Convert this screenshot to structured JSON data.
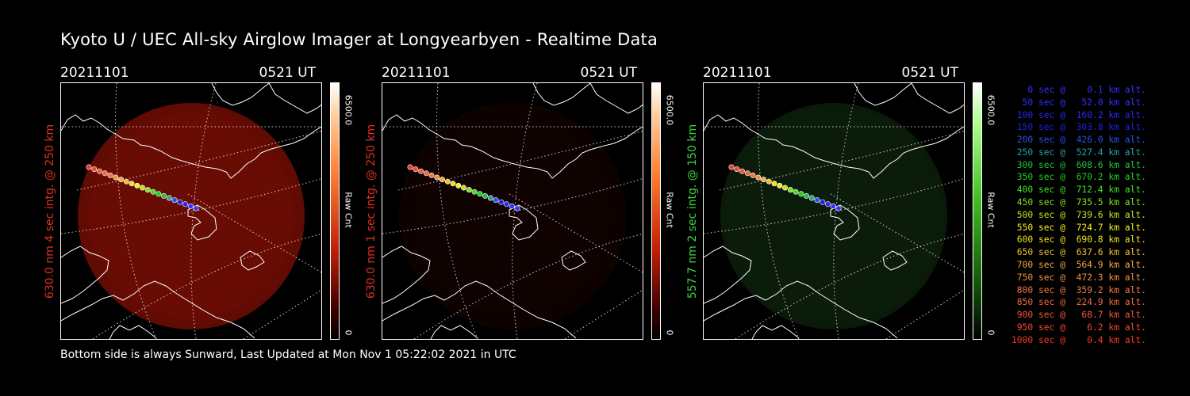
{
  "title": "Kyoto U / UEC All-sky Airglow Imager at Longyearbyen - Realtime Data",
  "footer": "Bottom side is always Sunward, Last Updated at Mon Nov  1 05:22:02 2021 in UTC",
  "panels": [
    {
      "date": "20211101",
      "time": "0521 UT",
      "side_label": "630.0 nm 4 sec intg. @ 250 km",
      "side_color": "#e03020",
      "cbar_max": "6500.0",
      "cbar_unit": "Raw Cnt",
      "cbar_min": "0",
      "scheme": "red",
      "glow_color": "#7a0e04",
      "brightness": 0.85
    },
    {
      "date": "20211101",
      "time": "0521 UT",
      "side_label": "630.0 nm 1 sec intg. @ 250 km",
      "side_color": "#e03020",
      "cbar_max": "6500.0",
      "cbar_unit": "Raw Cnt",
      "cbar_min": "0",
      "scheme": "red",
      "glow_color": "#2a0502",
      "brightness": 0.35
    },
    {
      "date": "20211101",
      "time": "0521 UT",
      "side_label": "557.7 nm 2 sec intg. @ 150 km",
      "side_color": "#3cd43c",
      "cbar_max": "6500.0",
      "cbar_unit": "Raw Cnt",
      "cbar_min": "0",
      "scheme": "green",
      "glow_color": "#163a14",
      "brightness": 0.5
    }
  ],
  "legend": [
    {
      "text": "   0 sec @    0.1 km alt.",
      "color": "#3030ff"
    },
    {
      "text": "  50 sec @   52.0 km alt.",
      "color": "#3030ff"
    },
    {
      "text": " 100 sec @  160.2 km alt.",
      "color": "#2828f0"
    },
    {
      "text": " 150 sec @  303.8 km alt.",
      "color": "#2020e0"
    },
    {
      "text": " 200 sec @  426.0 km alt.",
      "color": "#2850e8"
    },
    {
      "text": " 250 sec @  527.4 km alt.",
      "color": "#2aa0a0"
    },
    {
      "text": " 300 sec @  608.6 km alt.",
      "color": "#20c040"
    },
    {
      "text": " 350 sec @  670.2 km alt.",
      "color": "#20d020"
    },
    {
      "text": " 400 sec @  712.4 km alt.",
      "color": "#40e020"
    },
    {
      "text": " 450 sec @  735.5 km alt.",
      "color": "#80e020"
    },
    {
      "text": " 500 sec @  739.6 km alt.",
      "color": "#c0e020"
    },
    {
      "text": " 550 sec @  724.7 km alt.",
      "color": "#f0f020"
    },
    {
      "text": " 600 sec @  690.8 km alt.",
      "color": "#f0e020"
    },
    {
      "text": " 650 sec @  637.6 km alt.",
      "color": "#f0c030"
    },
    {
      "text": " 700 sec @  564.9 km alt.",
      "color": "#f0a840"
    },
    {
      "text": " 750 sec @  472.3 km alt.",
      "color": "#f09040"
    },
    {
      "text": " 800 sec @  359.2 km alt.",
      "color": "#f07840"
    },
    {
      "text": " 850 sec @  224.9 km alt.",
      "color": "#f06840"
    },
    {
      "text": " 900 sec @   68.7 km alt.",
      "color": "#f05838"
    },
    {
      "text": " 950 sec @    6.2 km alt.",
      "color": "#f04830"
    },
    {
      "text": "1000 sec @    0.4 km alt.",
      "color": "#f03828"
    }
  ]
}
